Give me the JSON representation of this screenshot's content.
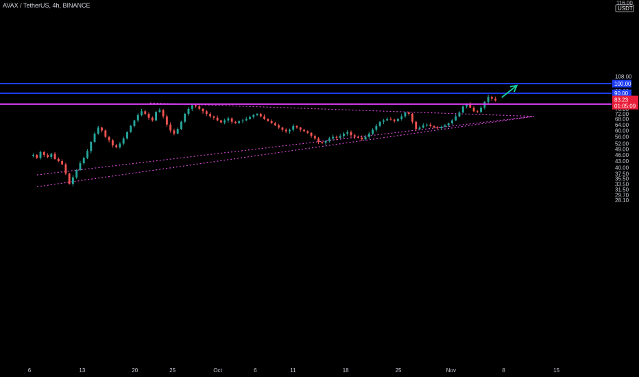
{
  "header": {
    "title": "AVAX / TetherUS, 4h, BINANCE"
  },
  "axis": {
    "currency": "USDT",
    "top_label": "116.00",
    "y_ticks": [
      "108.00",
      "92.00",
      "87.00",
      "76.00",
      "72.00",
      "68.00",
      "64.00",
      "60.00",
      "56.00",
      "52.00",
      "49.00",
      "46.00",
      "43.00",
      "40.00",
      "37.50",
      "35.50",
      "33.50",
      "31.50",
      "29.70",
      "28.10"
    ],
    "x_ticks": [
      "6",
      "13",
      "20",
      "25",
      "Oct",
      "6",
      "11",
      "18",
      "25",
      "Nov",
      "8",
      "15"
    ]
  },
  "colors": {
    "background": "#000000",
    "up": "#26a69a",
    "down": "#ef5350",
    "support_lines": "#1e3df5",
    "resistance_line": "#e040fb",
    "trendlines": "#d64bd6",
    "arrow": "#19c99a",
    "price_badge": "#e91e3a"
  },
  "chart_data": {
    "type": "candlestick",
    "title": "AVAX / TetherUS, 4h, BINANCE",
    "y_scale": "log",
    "x_range": [
      "Sep 6",
      "Nov 18"
    ],
    "y_range": [
      28.1,
      116
    ],
    "current_price": {
      "label": "83.23",
      "countdown": "01:05:09",
      "value": 83.23
    },
    "horizontal_levels": [
      {
        "value": 100.0,
        "label": "100.00",
        "color": "#1e3df5"
      },
      {
        "value": 90.0,
        "label": "90.00",
        "color": "#1e3df5"
      },
      {
        "value": 80.0,
        "label": "80.00",
        "color": "#e040fb"
      }
    ],
    "trendlines": [
      {
        "from": [
          "Sep 7",
          32.5
        ],
        "to": [
          "Nov 13",
          70.0
        ]
      },
      {
        "from": [
          "Sep 7",
          37.0
        ],
        "to": [
          "Nov 13",
          70.0
        ]
      },
      {
        "from": [
          "Sep 22",
          81.0
        ],
        "to": [
          "Nov 13",
          70.0
        ]
      }
    ],
    "arrow": {
      "from": [
        "Nov 8",
        86.0
      ],
      "to": [
        "Nov 10",
        98.0
      ]
    },
    "closes": [
      46.0,
      44.5,
      47.5,
      46.0,
      45.0,
      46.5,
      44.0,
      43.0,
      41.5,
      37.5,
      33.5,
      36.0,
      39.0,
      42.0,
      44.5,
      48.0,
      53.0,
      58.0,
      62.0,
      60.0,
      56.0,
      54.0,
      51.0,
      50.0,
      52.0,
      55.0,
      59.0,
      63.0,
      67.0,
      71.0,
      74.0,
      72.0,
      69.0,
      67.0,
      73.5,
      75.0,
      70.0,
      64.0,
      60.0,
      58.0,
      61.0,
      66.0,
      72.0,
      76.0,
      79.0,
      78.0,
      76.0,
      74.0,
      72.0,
      70.0,
      69.0,
      67.0,
      65.5,
      67.0,
      68.5,
      66.0,
      65.0,
      66.5,
      67.0,
      68.0,
      69.5,
      71.0,
      72.0,
      70.0,
      68.0,
      66.5,
      65.0,
      63.5,
      62.0,
      60.5,
      59.5,
      60.5,
      63.0,
      62.0,
      60.5,
      59.5,
      58.5,
      56.5,
      55.0,
      53.0,
      52.5,
      53.5,
      55.0,
      56.0,
      55.5,
      56.5,
      58.0,
      59.0,
      57.0,
      56.0,
      55.5,
      54.5,
      56.0,
      58.0,
      60.5,
      63.0,
      66.0,
      67.0,
      68.0,
      67.5,
      66.5,
      68.0,
      70.0,
      73.0,
      72.0,
      66.0,
      61.0,
      62.0,
      63.5,
      64.0,
      63.0,
      62.0,
      61.5,
      62.5,
      63.5,
      65.0,
      67.0,
      70.0,
      73.0,
      78.0,
      80.0,
      77.0,
      74.0,
      73.5,
      77.0,
      82.0,
      86.5,
      85.0,
      83.23
    ]
  }
}
